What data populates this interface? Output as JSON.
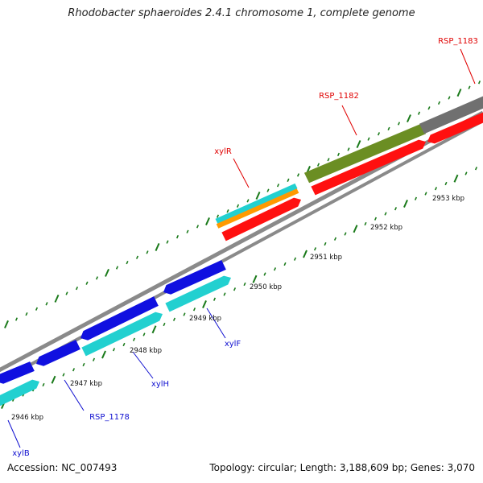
{
  "title": "Rhodobacter sphaeroides 2.4.1 chromosome 1, complete genome",
  "footer": {
    "accession": "Accession: NC_007493",
    "summary": "Topology: circular; Length: 3,188,609 bp; Genes: 3,070"
  },
  "colors": {
    "backbone": "#8a8a8a",
    "tick": "#1a7a1a",
    "label_red": "#e00000",
    "label_blue": "#1010d0",
    "cyan": "#22d0d0",
    "blue": "#1010e0",
    "red": "#ff1010",
    "orange": "#ff9900",
    "olive": "#6b8e23",
    "gray": "#707070"
  },
  "scale_labels": [
    "2946 kbp",
    "2947 kbp",
    "2948 kbp",
    "2949 kbp",
    "2950 kbp",
    "2951 kbp",
    "2952 kbp",
    "2953 kbp"
  ],
  "gene_labels": [
    {
      "text": "xylB",
      "color": "blue"
    },
    {
      "text": "RSP_1178",
      "color": "blue"
    },
    {
      "text": "xylH",
      "color": "blue"
    },
    {
      "text": "xylF",
      "color": "blue"
    },
    {
      "text": "xylR",
      "color": "red"
    },
    {
      "text": "RSP_1182",
      "color": "red"
    },
    {
      "text": "RSP_1183",
      "color": "red"
    }
  ]
}
